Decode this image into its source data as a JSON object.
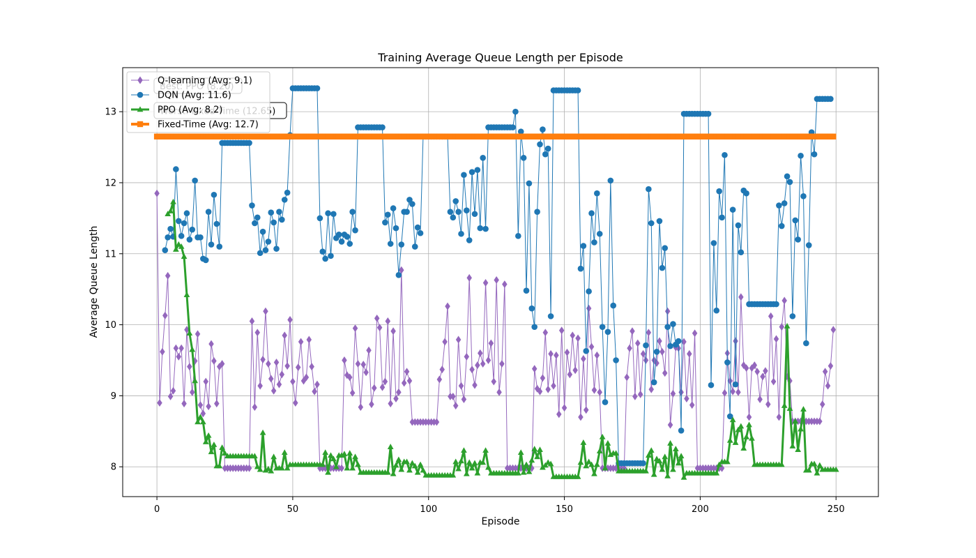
{
  "chart_data": {
    "type": "line",
    "title": "Training Average Queue Length per Episode",
    "xlabel": "Episode",
    "ylabel": "Average Queue Length",
    "xlim": [
      -12.6,
      265.6
    ],
    "ylim": [
      7.58,
      13.62
    ],
    "xticks": [
      0,
      50,
      100,
      150,
      200,
      250
    ],
    "yticks": [
      8,
      9,
      10,
      11,
      12,
      13
    ],
    "grid": true,
    "legend_position": "top-left",
    "series": [
      {
        "name": "Q-learning (Avg: 9.1)",
        "color": "#9467bd",
        "marker": "diamond",
        "linewidth": 1,
        "x_start": 0,
        "values": [
          11.85,
          8.9,
          9.62,
          10.13,
          10.69,
          8.99,
          9.07,
          9.67,
          9.55,
          9.67,
          8.89,
          9.93,
          9.41,
          9.05,
          9.49,
          9.87,
          8.87,
          8.75,
          9.2,
          8.85,
          9.73,
          9.49,
          8.89,
          9.41,
          9.45,
          7.98,
          7.98,
          7.98,
          7.98,
          7.98,
          7.98,
          7.98,
          7.98,
          7.98,
          7.98,
          10.05,
          8.84,
          9.89,
          9.14,
          9.51,
          10.19,
          9.45,
          9.24,
          9.07,
          9.47,
          9.16,
          9.3,
          9.85,
          9.42,
          10.07,
          9.2,
          8.9,
          9.4,
          9.76,
          9.21,
          9.26,
          9.79,
          9.41,
          9.06,
          9.16,
          7.98,
          7.98,
          7.98,
          7.98,
          7.98,
          7.98,
          7.98,
          7.98,
          7.98,
          9.5,
          9.29,
          9.26,
          9.04,
          9.95,
          9.45,
          8.84,
          9.44,
          9.33,
          9.64,
          8.88,
          9.11,
          10.09,
          9.96,
          9.12,
          9.2,
          10.05,
          8.89,
          9.91,
          8.96,
          9.05,
          10.77,
          9.18,
          9.34,
          9.21,
          8.63,
          8.63,
          8.63,
          8.63,
          8.63,
          8.63,
          8.63,
          8.63,
          8.63,
          8.63,
          9.23,
          9.37,
          9.76,
          10.26,
          8.99,
          8.99,
          8.86,
          9.79,
          9.14,
          8.95,
          9.55,
          10.66,
          9.37,
          9.15,
          9.43,
          9.6,
          9.45,
          10.59,
          9.5,
          9.74,
          9.2,
          10.63,
          9.05,
          9.45,
          10.57,
          7.98,
          7.98,
          7.98,
          7.98,
          7.98,
          7.98,
          7.98,
          7.98,
          7.98,
          7.98,
          9.38,
          9.1,
          9.06,
          9.25,
          9.89,
          9.09,
          9.59,
          9.14,
          9.57,
          8.74,
          9.92,
          8.83,
          9.61,
          9.3,
          9.85,
          9.36,
          9.81,
          8.7,
          9.52,
          8.8,
          10.23,
          9.69,
          9.08,
          9.57,
          9.05,
          7.98,
          7.98,
          7.98,
          7.98,
          7.98,
          7.98,
          7.98,
          7.98,
          7.98,
          9.26,
          9.67,
          9.91,
          8.99,
          9.74,
          9.02,
          9.59,
          9.5,
          9.89,
          9.09,
          9.5,
          9.46,
          9.77,
          9.62,
          9.32,
          10.19,
          8.59,
          9.03,
          9.68,
          9.67,
          9.05,
          9.76,
          8.96,
          9.59,
          8.87,
          9.88,
          7.98,
          7.98,
          7.98,
          7.98,
          7.98,
          7.98,
          7.98,
          7.98,
          7.98,
          7.98,
          9.04,
          9.6,
          9.21,
          9.06,
          9.77,
          9.05,
          10.39,
          9.43,
          9.39,
          8.7,
          9.39,
          9.43,
          9.34,
          8.95,
          9.27,
          9.35,
          8.88,
          10.12,
          9.2,
          9.8,
          8.7,
          9.97,
          10.34,
          9.27,
          9.21,
          8.64,
          8.64,
          8.64,
          8.64,
          8.64,
          8.64,
          8.64,
          8.64,
          8.64,
          8.64,
          8.64,
          8.88,
          9.34,
          9.14,
          9.42,
          9.93
        ]
      },
      {
        "name": "DQN (Avg: 11.6)",
        "color": "#1f77b4",
        "marker": "circle",
        "linewidth": 1,
        "x_start": 3,
        "values": [
          11.05,
          11.23,
          11.35,
          11.24,
          12.19,
          11.46,
          11.25,
          11.43,
          11.57,
          11.2,
          11.34,
          12.03,
          11.23,
          11.23,
          10.93,
          10.91,
          11.59,
          11.13,
          11.83,
          11.42,
          11.1,
          12.56,
          12.56,
          12.56,
          12.56,
          12.56,
          12.56,
          12.56,
          12.56,
          12.56,
          12.56,
          12.56,
          11.68,
          11.43,
          11.51,
          11.01,
          11.31,
          11.05,
          11.17,
          11.58,
          11.44,
          11.07,
          11.59,
          11.48,
          11.76,
          11.86,
          12.67,
          13.33,
          13.33,
          13.33,
          13.33,
          13.33,
          13.33,
          13.33,
          13.33,
          13.33,
          13.33,
          11.5,
          11.03,
          10.93,
          11.57,
          10.97,
          11.56,
          11.22,
          11.27,
          11.17,
          11.27,
          11.24,
          11.14,
          11.59,
          11.33,
          12.78,
          12.78,
          12.78,
          12.78,
          12.78,
          12.78,
          12.78,
          12.78,
          12.78,
          12.78,
          11.44,
          11.55,
          11.14,
          11.64,
          11.36,
          10.7,
          11.13,
          11.59,
          11.59,
          11.76,
          11.7,
          11.1,
          11.37,
          11.29,
          12.65,
          12.65,
          12.65,
          12.65,
          12.65,
          12.65,
          12.65,
          12.65,
          12.65,
          12.65,
          11.59,
          11.51,
          11.74,
          11.59,
          11.28,
          12.11,
          11.61,
          11.19,
          12.15,
          11.56,
          12.18,
          11.36,
          12.35,
          11.35,
          12.78,
          12.78,
          12.78,
          12.78,
          12.78,
          12.78,
          12.78,
          12.78,
          12.78,
          12.78,
          13.0,
          11.25,
          12.72,
          12.35,
          10.48,
          11.99,
          10.23,
          9.97,
          11.59,
          12.54,
          12.75,
          12.4,
          12.48,
          10.12,
          13.3,
          13.3,
          13.3,
          13.3,
          13.3,
          13.3,
          13.3,
          13.3,
          13.3,
          13.3,
          10.79,
          11.11,
          9.63,
          10.47,
          11.57,
          11.16,
          11.85,
          11.28,
          9.97,
          8.91,
          9.9,
          12.03,
          10.27,
          9.5,
          8.05,
          8.05,
          8.05,
          8.05,
          8.05,
          8.05,
          8.05,
          8.05,
          8.05,
          8.05,
          9.71,
          11.91,
          11.43,
          9.19,
          9.62,
          11.46,
          10.8,
          11.08,
          9.97,
          9.7,
          10.01,
          9.72,
          9.77,
          8.51,
          12.97,
          12.97,
          12.97,
          12.97,
          12.97,
          12.97,
          12.97,
          12.97,
          12.97,
          12.97,
          9.15,
          11.15,
          10.2,
          11.88,
          11.51,
          12.39,
          9.47,
          8.71,
          11.62,
          9.16,
          11.4,
          11.02,
          11.89,
          11.85,
          10.29,
          10.29,
          10.29,
          10.29,
          10.29,
          10.29,
          10.29,
          10.29,
          10.29,
          10.29,
          10.29,
          11.68,
          11.39,
          11.71,
          12.09,
          12.01,
          10.12,
          11.47,
          11.2,
          12.38,
          11.81,
          9.74,
          11.12,
          12.71,
          12.4,
          13.18,
          13.18,
          13.18,
          13.18,
          13.18,
          13.18
        ]
      },
      {
        "name": "PPO (Avg: 8.2)",
        "color": "#2ca02c",
        "marker": "triangle",
        "linewidth": 3,
        "x_start": 4,
        "values": [
          11.56,
          11.6,
          11.73,
          11.06,
          11.13,
          11.1,
          10.96,
          10.42,
          9.88,
          9.65,
          9.21,
          8.63,
          8.7,
          8.63,
          8.35,
          8.44,
          8.21,
          8.31,
          8.01,
          8.01,
          8.27,
          8.19,
          8.15,
          8.15,
          8.15,
          8.15,
          8.15,
          8.15,
          8.15,
          8.15,
          8.15,
          8.15,
          8.15,
          8.0,
          7.96,
          8.48,
          7.95,
          7.97,
          7.94,
          8.14,
          7.98,
          7.98,
          7.98,
          8.2,
          7.98,
          8.03,
          8.03,
          8.03,
          8.03,
          8.03,
          8.03,
          8.03,
          8.03,
          8.03,
          8.03,
          8.03,
          8.03,
          8.03,
          8.2,
          7.92,
          8.16,
          8.11,
          8.0,
          8.16,
          8.16,
          8.18,
          7.98,
          8.19,
          7.98,
          8.14,
          8.03,
          7.92,
          7.92,
          7.92,
          7.92,
          7.92,
          7.92,
          7.92,
          7.92,
          7.92,
          7.92,
          7.92,
          8.28,
          7.9,
          8.02,
          8.1,
          7.96,
          8.07,
          8.07,
          7.95,
          8.05,
          8.01,
          7.92,
          8.03,
          7.95,
          7.88,
          7.88,
          7.88,
          7.88,
          7.88,
          7.88,
          7.88,
          7.88,
          7.88,
          7.88,
          7.88,
          8.07,
          7.97,
          8.08,
          8.23,
          7.9,
          8.06,
          7.98,
          8.05,
          7.91,
          8.06,
          8.06,
          8.23,
          7.99,
          7.91,
          7.91,
          7.91,
          7.91,
          7.91,
          7.91,
          7.91,
          7.91,
          7.91,
          7.91,
          7.91,
          8.2,
          7.92,
          8.03,
          7.93,
          8.09,
          8.25,
          8.14,
          8.24,
          7.99,
          8.02,
          8.06,
          8.04,
          7.86,
          7.86,
          7.86,
          7.86,
          7.86,
          7.86,
          7.86,
          7.86,
          7.86,
          7.86,
          8.06,
          8.34,
          8.01,
          8.07,
          8.03,
          7.9,
          8.03,
          8.22,
          8.42,
          7.98,
          8.33,
          8.17,
          8.19,
          8.19,
          7.94,
          7.94,
          7.94,
          7.94,
          7.94,
          7.94,
          7.94,
          7.94,
          7.94,
          7.94,
          7.94,
          8.16,
          8.23,
          7.89,
          8.11,
          8.08,
          7.96,
          8.14,
          7.87,
          8.33,
          7.96,
          8.25,
          8.05,
          8.15,
          7.85,
          7.91,
          7.91,
          7.91,
          7.91,
          7.91,
          7.91,
          7.91,
          7.91,
          7.91,
          7.91,
          7.91,
          7.91,
          8.03,
          8.07,
          8.07,
          8.07,
          8.37,
          8.66,
          8.34,
          8.52,
          8.57,
          8.26,
          8.42,
          8.59,
          8.4,
          8.03,
          8.03,
          8.03,
          8.03,
          8.03,
          8.03,
          8.03,
          8.03,
          8.03,
          8.03,
          8.03,
          8.86,
          9.98,
          8.82,
          8.29,
          8.64,
          8.24,
          8.53,
          8.81,
          7.95,
          7.95,
          8.04,
          8.04,
          7.91,
          8.02,
          7.96,
          7.96,
          7.96,
          7.96,
          7.96,
          7.96
        ]
      },
      {
        "name": "Fixed-Time (Avg: 12.7)",
        "color": "#ff7f0e",
        "marker": "square",
        "linewidth": 4,
        "x_start": 0,
        "x_end": 249,
        "constant": 12.65
      }
    ],
    "annotations": [
      {
        "text": "Best: PPO (8.20)",
        "position": "top-left",
        "kind": "bbox"
      },
      {
        "text": "Worst: Fixed-Time (12.65)",
        "position": "top-left",
        "kind": "bbox"
      }
    ]
  }
}
